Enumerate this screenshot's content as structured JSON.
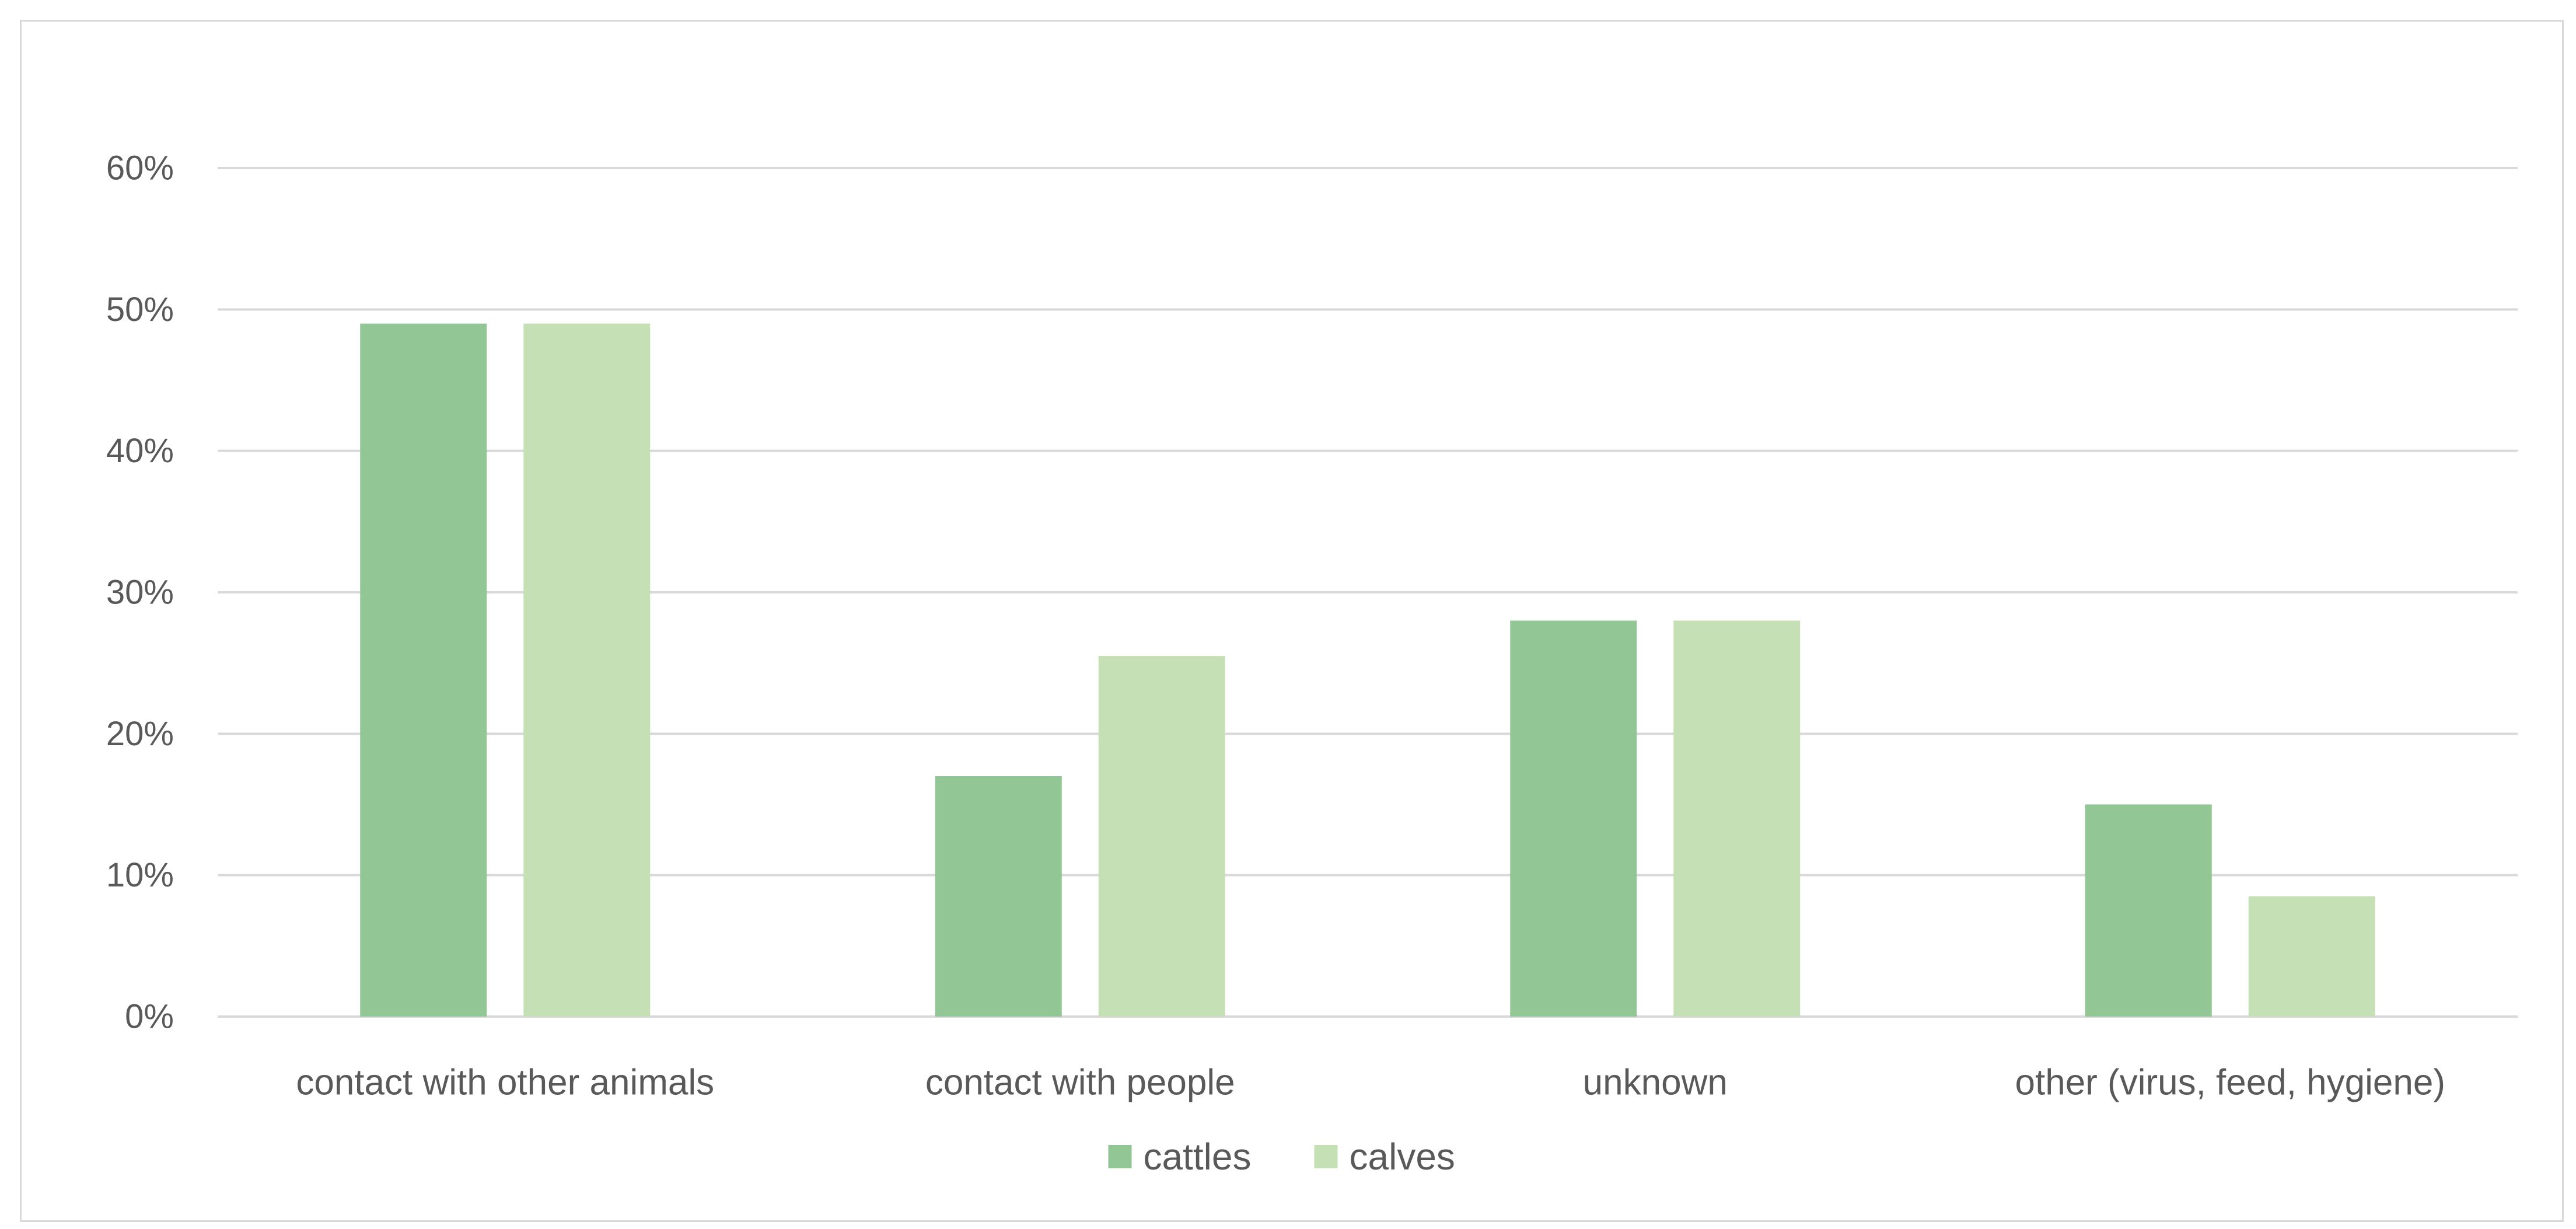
{
  "chart_data": {
    "type": "bar",
    "title": "",
    "xlabel": "",
    "ylabel": "",
    "categories": [
      "contact with other animals",
      "contact with people",
      "unknown",
      "other (virus, feed, hygiene)"
    ],
    "series": [
      {
        "name": "cattles",
        "color": "#92c694",
        "values": [
          49,
          17,
          28,
          15
        ]
      },
      {
        "name": "calves",
        "color": "#c5e0b4",
        "values": [
          49,
          25.5,
          28,
          8.5
        ]
      }
    ],
    "ylim": [
      0,
      60
    ],
    "yticks": [
      "0%",
      "10%",
      "20%",
      "30%",
      "40%",
      "50%",
      "60%"
    ],
    "grid": true,
    "gridline_color": "#d9d9d9",
    "legend_position": "bottom"
  }
}
